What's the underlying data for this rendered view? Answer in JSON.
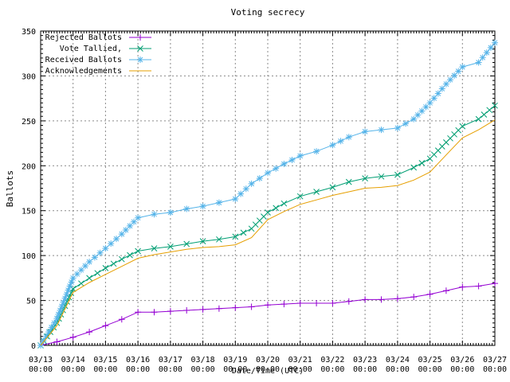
{
  "chart_data": {
    "type": "line",
    "title": "Voting secrecy",
    "xlabel": "Date/Time (UTC)",
    "ylabel": "Ballots",
    "ylim": [
      0,
      350
    ],
    "y_major_tick_step": 50,
    "y_minor_tick_step": 5,
    "x_minor_ticks_per_day": 12,
    "grid": "dashed",
    "grid_color": "#8a8a8a",
    "border_color": "#000000",
    "background": "#ffffff",
    "legend_position": "top-left",
    "x_tick_dates": [
      "03/13",
      "03/14",
      "03/15",
      "03/16",
      "03/17",
      "03/18",
      "03/19",
      "03/20",
      "03/21",
      "03/22",
      "03/23",
      "03/24",
      "03/25",
      "03/26",
      "03/27"
    ],
    "x_tick_time_label": "00:00",
    "x_days": [
      0,
      0.5,
      1,
      1.5,
      2,
      2.5,
      3,
      3.5,
      4,
      4.5,
      5,
      5.5,
      6,
      6.5,
      7,
      7.5,
      8,
      8.5,
      9,
      9.5,
      10,
      10.5,
      11,
      11.5,
      12,
      12.5,
      13,
      13.5,
      14
    ],
    "series": [
      {
        "name": "Rejected Ballots",
        "color": "#9400d3",
        "marker": "plus",
        "values": [
          0,
          4,
          9,
          15,
          22,
          29,
          37,
          37,
          38,
          39,
          40,
          41,
          42,
          43,
          45,
          46,
          47,
          47,
          47,
          49,
          51,
          51,
          52,
          54,
          57,
          61,
          65,
          66,
          69
        ]
      },
      {
        "name": "Vote Tallied,",
        "color": "#009e73",
        "marker": "cross",
        "values": [
          0,
          25,
          63,
          75,
          86,
          96,
          105,
          108,
          110,
          113,
          116,
          118,
          121,
          130,
          148,
          158,
          166,
          171,
          176,
          182,
          186,
          188,
          190,
          198,
          208,
          226,
          244,
          252,
          267
        ]
      },
      {
        "name": "Received Ballots",
        "color": "#56b4e9",
        "marker": "asterisk",
        "values": [
          0,
          30,
          75,
          93,
          108,
          124,
          142,
          146,
          148,
          152,
          155,
          159,
          163,
          180,
          192,
          202,
          211,
          216,
          223,
          232,
          238,
          240,
          242,
          252,
          270,
          291,
          310,
          315,
          337
        ]
      },
      {
        "name": "Acknowledgements",
        "color": "#e69f00",
        "marker": "none",
        "values": [
          0,
          22,
          59,
          70,
          79,
          88,
          97,
          101,
          104,
          107,
          109,
          110,
          112,
          120,
          140,
          149,
          157,
          162,
          167,
          171,
          175,
          176,
          178,
          184,
          193,
          212,
          231,
          240,
          251
        ]
      }
    ]
  }
}
